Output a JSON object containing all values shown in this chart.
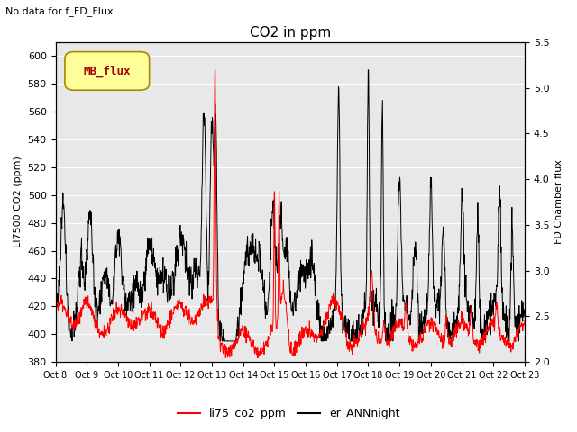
{
  "title": "CO2 in ppm",
  "top_left_text": "No data for f_FD_Flux",
  "ylabel_left": "LI7500 CO2 (ppm)",
  "ylabel_right": "FD Chamber flux",
  "ylim_left": [
    380,
    610
  ],
  "ylim_right": [
    2.0,
    5.5
  ],
  "yticks_left": [
    380,
    400,
    420,
    440,
    460,
    480,
    500,
    520,
    540,
    560,
    580,
    600
  ],
  "yticks_right": [
    2.0,
    2.5,
    3.0,
    3.5,
    4.0,
    4.5,
    5.0,
    5.5
  ],
  "xtick_labels": [
    "Oct 8",
    "Oct 9",
    "Oct 10",
    "Oct 11",
    "Oct 12",
    "Oct 13",
    "Oct 14",
    "Oct 15",
    "Oct 16",
    "Oct 17",
    "Oct 18",
    "Oct 19",
    "Oct 20",
    "Oct 21",
    "Oct 22",
    "Oct 23"
  ],
  "line1_color": "#ff0000",
  "line2_color": "#000000",
  "line1_label": "li75_co2_ppm",
  "line2_label": "er_ANNnight",
  "legend_box_label": "MB_flux",
  "legend_box_color": "#ffff99",
  "legend_box_edge": "#aa8800",
  "legend_box_text_color": "#aa0000",
  "plot_bg_color": "#e8e8e8",
  "grid_color": "#ffffff"
}
